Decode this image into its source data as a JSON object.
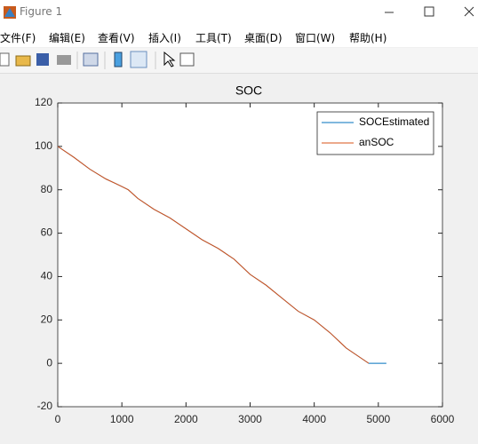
{
  "window": {
    "title": "Figure 1"
  },
  "menu": {
    "items": [
      "文件(F)",
      "编辑(E)",
      "查看(V)",
      "插入(I)",
      "工具(T)",
      "桌面(D)",
      "窗口(W)",
      "帮助(H)"
    ]
  },
  "chart_data": {
    "type": "line",
    "title": "SOC",
    "x": [
      0,
      250,
      500,
      750,
      1000,
      1100,
      1250,
      1500,
      1750,
      2000,
      2250,
      2500,
      2750,
      3000,
      3250,
      3500,
      3750,
      4000,
      4250,
      4500,
      4750,
      4850,
      5125
    ],
    "series": [
      {
        "name": "SOCEstimated",
        "color": "#0072bd",
        "values": [
          100,
          95,
          89.5,
          85,
          81.5,
          80,
          76,
          71,
          67,
          62,
          57,
          53,
          48,
          41,
          36,
          30,
          24,
          20,
          14,
          7,
          2,
          0,
          0
        ]
      },
      {
        "name": "anSOC",
        "color": "#d95319",
        "values": [
          100,
          95,
          89.5,
          85,
          81.5,
          80,
          76,
          71,
          67,
          62,
          57,
          53,
          48,
          41,
          36,
          30,
          24,
          20,
          14,
          7,
          2,
          0,
          null
        ]
      }
    ],
    "xlim": [
      0,
      6000
    ],
    "xticks": [
      0,
      1000,
      2000,
      3000,
      4000,
      5000,
      6000
    ],
    "ylim": [
      -20,
      120
    ],
    "yticks": [
      -20,
      0,
      20,
      40,
      60,
      80,
      100,
      120
    ],
    "legend": "upper right"
  }
}
